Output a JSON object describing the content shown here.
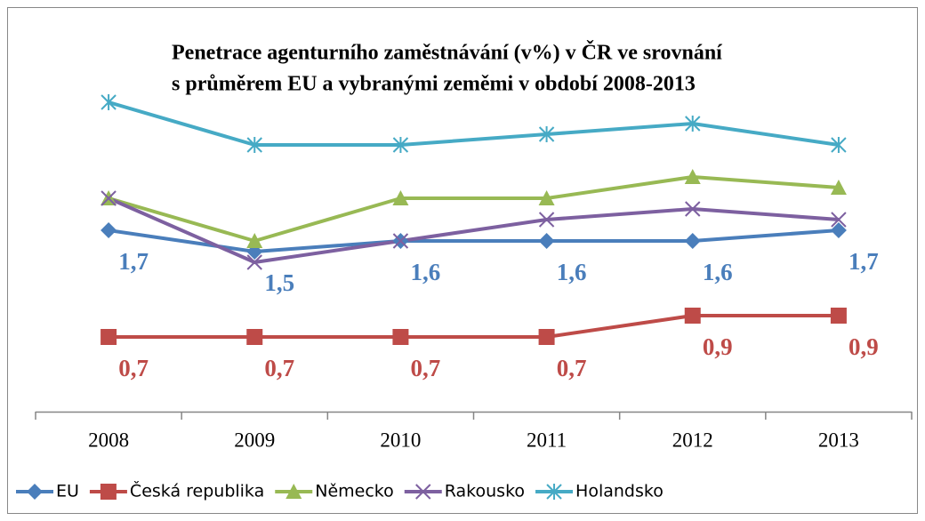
{
  "chart_data": {
    "type": "line",
    "title": [
      "Penetrace agenturního zaměstnávání (v%) v ČR ve srovnání",
      "s průměrem EU a vybranými zeměmi v období 2008-2013"
    ],
    "categories": [
      "2008",
      "2009",
      "2010",
      "2011",
      "2012",
      "2013"
    ],
    "ylim": [
      0,
      3
    ],
    "series": [
      {
        "name": "EU",
        "color": "#4a7ebb",
        "marker": "diamond",
        "values": [
          1.7,
          1.5,
          1.6,
          1.6,
          1.6,
          1.7
        ],
        "value_labels": [
          "1,7",
          "1,5",
          "1,6",
          "1,6",
          "1,6",
          "1,7"
        ]
      },
      {
        "name": "Česká republika",
        "color": "#be4b48",
        "marker": "square",
        "values": [
          0.7,
          0.7,
          0.7,
          0.7,
          0.9,
          0.9
        ],
        "value_labels": [
          "0,7",
          "0,7",
          "0,7",
          "0,7",
          "0,9",
          "0,9"
        ]
      },
      {
        "name": "Německo",
        "color": "#98b954",
        "marker": "triangle",
        "values": [
          2.0,
          1.6,
          2.0,
          2.0,
          2.2,
          2.1
        ]
      },
      {
        "name": "Rakousko",
        "color": "#7d60a0",
        "marker": "x",
        "values": [
          2.0,
          1.4,
          1.6,
          1.8,
          1.9,
          1.8
        ]
      },
      {
        "name": "Holandsko",
        "color": "#46aac5",
        "marker": "star",
        "values": [
          2.9,
          2.5,
          2.5,
          2.6,
          2.7,
          2.5
        ]
      }
    ]
  }
}
